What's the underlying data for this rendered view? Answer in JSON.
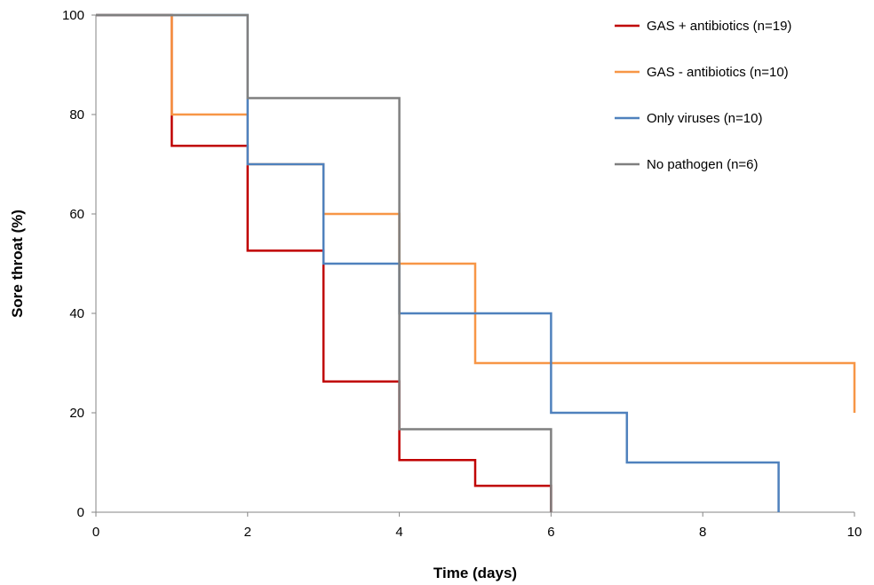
{
  "chart_data": {
    "type": "line",
    "step": true,
    "title": "",
    "xlabel": "Time (days)",
    "ylabel": "Sore throat (%)",
    "xlim": [
      0,
      10
    ],
    "ylim": [
      0,
      100
    ],
    "xticks": [
      0,
      2,
      4,
      6,
      8,
      10
    ],
    "yticks": [
      0,
      20,
      40,
      60,
      80,
      100
    ],
    "grid": false,
    "legend_position": "top-right",
    "series": [
      {
        "name": "GAS + antibiotics (n=19)",
        "color": "#c00000",
        "points": [
          [
            0,
            100
          ],
          [
            1,
            100
          ],
          [
            1,
            73.7
          ],
          [
            2,
            73.7
          ],
          [
            2,
            52.6
          ],
          [
            3,
            52.6
          ],
          [
            3,
            26.3
          ],
          [
            4,
            26.3
          ],
          [
            4,
            10.5
          ],
          [
            5,
            10.5
          ],
          [
            5,
            5.3
          ],
          [
            6,
            5.3
          ],
          [
            6,
            0
          ]
        ]
      },
      {
        "name": "GAS - antibiotics (n=10)",
        "color": "#f79646",
        "points": [
          [
            0,
            100
          ],
          [
            1,
            100
          ],
          [
            1,
            80
          ],
          [
            2,
            80
          ],
          [
            2,
            70
          ],
          [
            3,
            70
          ],
          [
            3,
            60
          ],
          [
            4,
            60
          ],
          [
            4,
            50
          ],
          [
            5,
            50
          ],
          [
            5,
            30
          ],
          [
            10,
            30
          ],
          [
            10,
            20
          ]
        ]
      },
      {
        "name": "Only viruses (n=10)",
        "color": "#4f81bd",
        "points": [
          [
            0,
            100
          ],
          [
            2,
            100
          ],
          [
            2,
            70
          ],
          [
            3,
            70
          ],
          [
            3,
            50
          ],
          [
            4,
            50
          ],
          [
            4,
            40
          ],
          [
            6,
            40
          ],
          [
            6,
            20
          ],
          [
            7,
            20
          ],
          [
            7,
            10
          ],
          [
            9,
            10
          ],
          [
            9,
            0
          ]
        ]
      },
      {
        "name": "No pathogen (n=6)",
        "color": "#7f7f7f",
        "points": [
          [
            0,
            100
          ],
          [
            2,
            100
          ],
          [
            2,
            83.3
          ],
          [
            4,
            83.3
          ],
          [
            4,
            16.7
          ],
          [
            6,
            16.7
          ],
          [
            6,
            0
          ]
        ]
      }
    ]
  }
}
